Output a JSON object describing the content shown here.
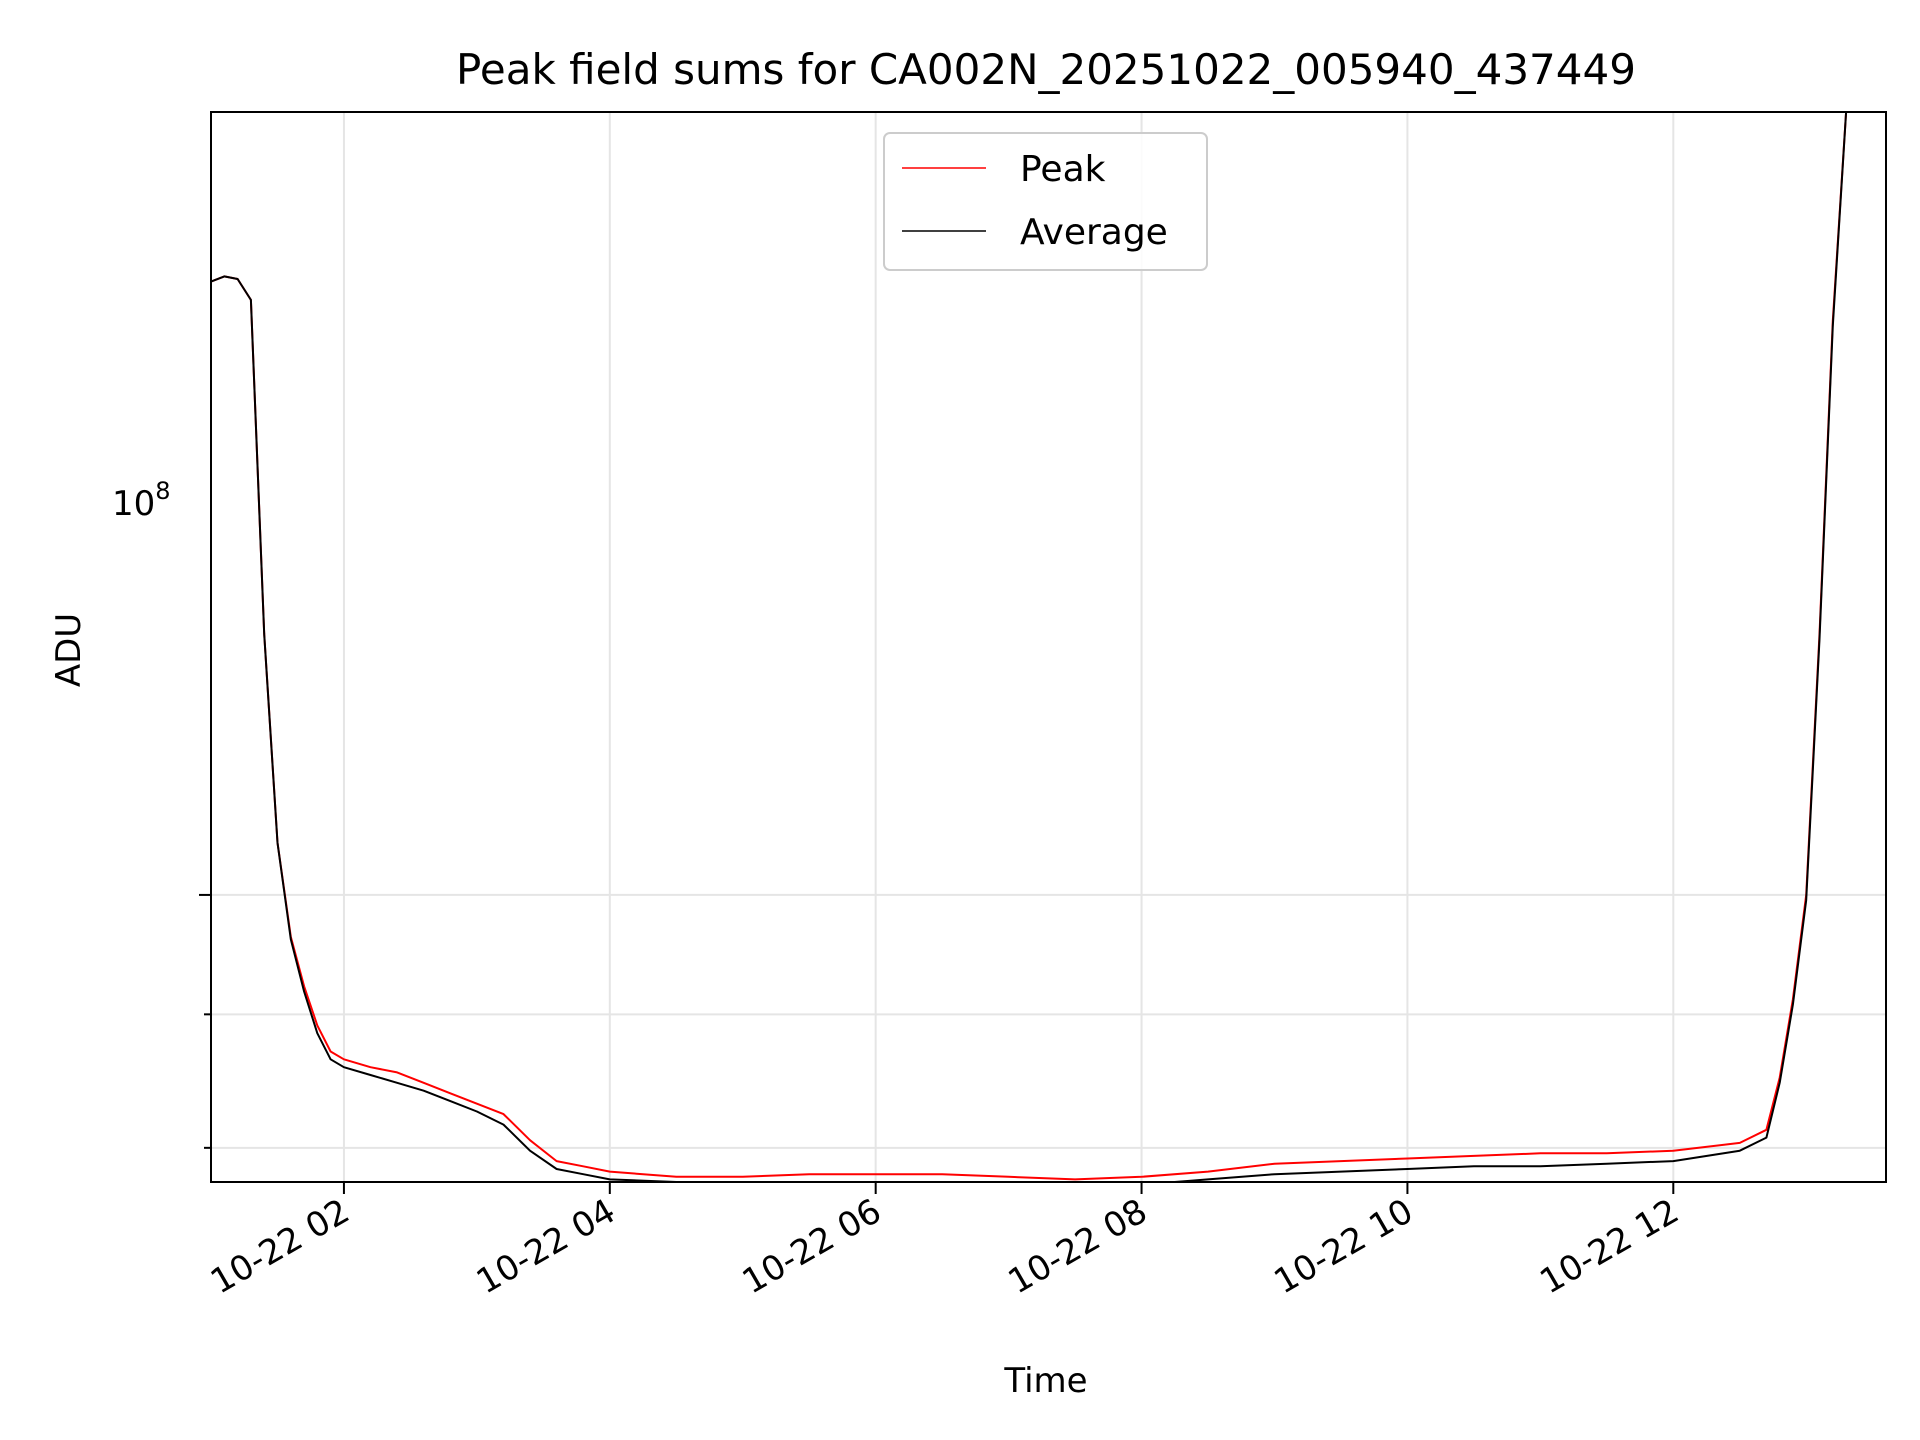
{
  "chart_data": {
    "type": "line",
    "title": "Peak field sums for CA002N_20251022_005940_437449",
    "xlabel": "Time",
    "ylabel": "ADU",
    "yscale": "log",
    "grid": true,
    "legend_position": "top-center",
    "x_unit": "hours since 2025-10-22 00:00",
    "xlim": [
      1.0,
      13.6
    ],
    "ylim_log10": [
      7.89,
      8.3
    ],
    "x_ticks": [
      {
        "value": 2,
        "label": "10-22 02"
      },
      {
        "value": 4,
        "label": "10-22 04"
      },
      {
        "value": 6,
        "label": "10-22 06"
      },
      {
        "value": 8,
        "label": "10-22 08"
      },
      {
        "value": 10,
        "label": "10-22 10"
      },
      {
        "value": 12,
        "label": "10-22 12"
      }
    ],
    "y_major_tick": {
      "value_log10": 8,
      "base": "10",
      "exponent": "8"
    },
    "y_minor_ticks_log10": [
      7.903,
      7.954,
      8.0
    ],
    "series": [
      {
        "name": "Peak",
        "color": "#ff0000",
        "x": [
          1.0,
          1.1,
          1.2,
          1.3,
          1.4,
          1.5,
          1.6,
          1.7,
          1.8,
          1.9,
          2.0,
          2.2,
          2.4,
          2.6,
          2.8,
          3.0,
          3.2,
          3.4,
          3.6,
          3.8,
          4.0,
          4.5,
          5.0,
          5.5,
          6.0,
          6.5,
          7.0,
          7.5,
          8.0,
          8.5,
          9.0,
          9.5,
          10.0,
          10.5,
          11.0,
          11.5,
          12.0,
          12.5,
          12.7,
          12.8,
          12.9,
          13.0,
          13.1,
          13.2,
          13.3,
          13.35
        ],
        "y_log10": [
          8.235,
          8.237,
          8.236,
          8.228,
          8.1,
          8.02,
          7.984,
          7.965,
          7.95,
          7.94,
          7.937,
          7.934,
          7.932,
          7.928,
          7.924,
          7.92,
          7.916,
          7.906,
          7.898,
          7.896,
          7.894,
          7.892,
          7.892,
          7.893,
          7.893,
          7.893,
          7.892,
          7.891,
          7.892,
          7.894,
          7.897,
          7.898,
          7.899,
          7.9,
          7.901,
          7.901,
          7.902,
          7.905,
          7.91,
          7.93,
          7.96,
          8.0,
          8.1,
          8.22,
          8.3,
          8.3
        ]
      },
      {
        "name": "Average",
        "color": "#000000",
        "x": [
          1.0,
          1.1,
          1.2,
          1.3,
          1.4,
          1.5,
          1.6,
          1.7,
          1.8,
          1.9,
          2.0,
          2.2,
          2.4,
          2.6,
          2.8,
          3.0,
          3.2,
          3.4,
          3.6,
          3.8,
          4.0,
          4.5,
          5.0,
          5.5,
          6.0,
          6.5,
          7.0,
          7.5,
          8.0,
          8.5,
          9.0,
          9.5,
          10.0,
          10.5,
          11.0,
          11.5,
          12.0,
          12.5,
          12.7,
          12.8,
          12.9,
          13.0,
          13.1,
          13.2,
          13.3,
          13.35
        ],
        "y_log10": [
          8.235,
          8.237,
          8.236,
          8.228,
          8.1,
          8.02,
          7.983,
          7.963,
          7.947,
          7.937,
          7.934,
          7.931,
          7.928,
          7.925,
          7.921,
          7.917,
          7.912,
          7.902,
          7.895,
          7.893,
          7.891,
          7.89,
          7.889,
          7.89,
          7.89,
          7.89,
          7.89,
          7.889,
          7.889,
          7.891,
          7.893,
          7.894,
          7.895,
          7.896,
          7.896,
          7.897,
          7.898,
          7.902,
          7.907,
          7.928,
          7.958,
          7.998,
          8.098,
          8.218,
          8.3,
          8.3
        ]
      }
    ]
  }
}
